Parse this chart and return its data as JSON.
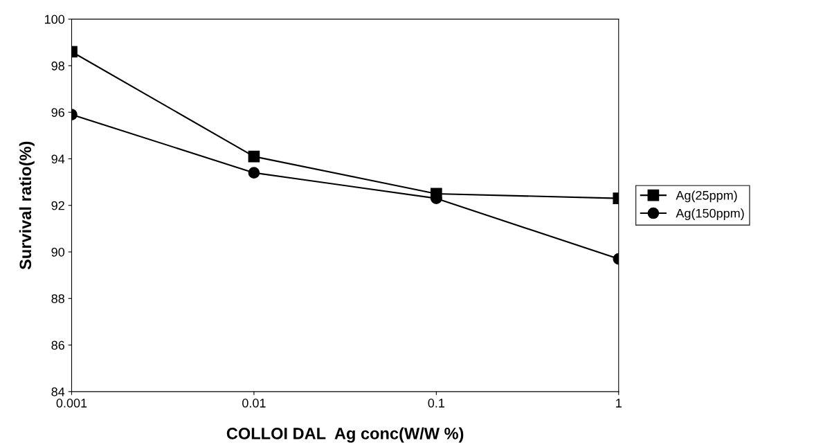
{
  "chart_data": {
    "type": "line",
    "xlabel": "COLLOI DAL  Ag conc(W/W %)",
    "ylabel": "Survival ratio(%)",
    "categories": [
      "0.001",
      "0.01",
      "0.1",
      "1"
    ],
    "series": [
      {
        "name": "Ag(25ppm)",
        "color": "#000000",
        "marker": "square",
        "values": [
          98.6,
          94.1,
          92.5,
          92.3
        ]
      },
      {
        "name": "Ag(150ppm)",
        "color": "#000000",
        "marker": "circle",
        "values": [
          95.9,
          93.4,
          92.3,
          89.7
        ]
      }
    ],
    "ylim": [
      84,
      100
    ],
    "yticks": [
      84,
      86,
      88,
      90,
      92,
      94,
      96,
      98,
      100
    ],
    "grid": false,
    "legend": "right",
    "line_style": "solid"
  }
}
